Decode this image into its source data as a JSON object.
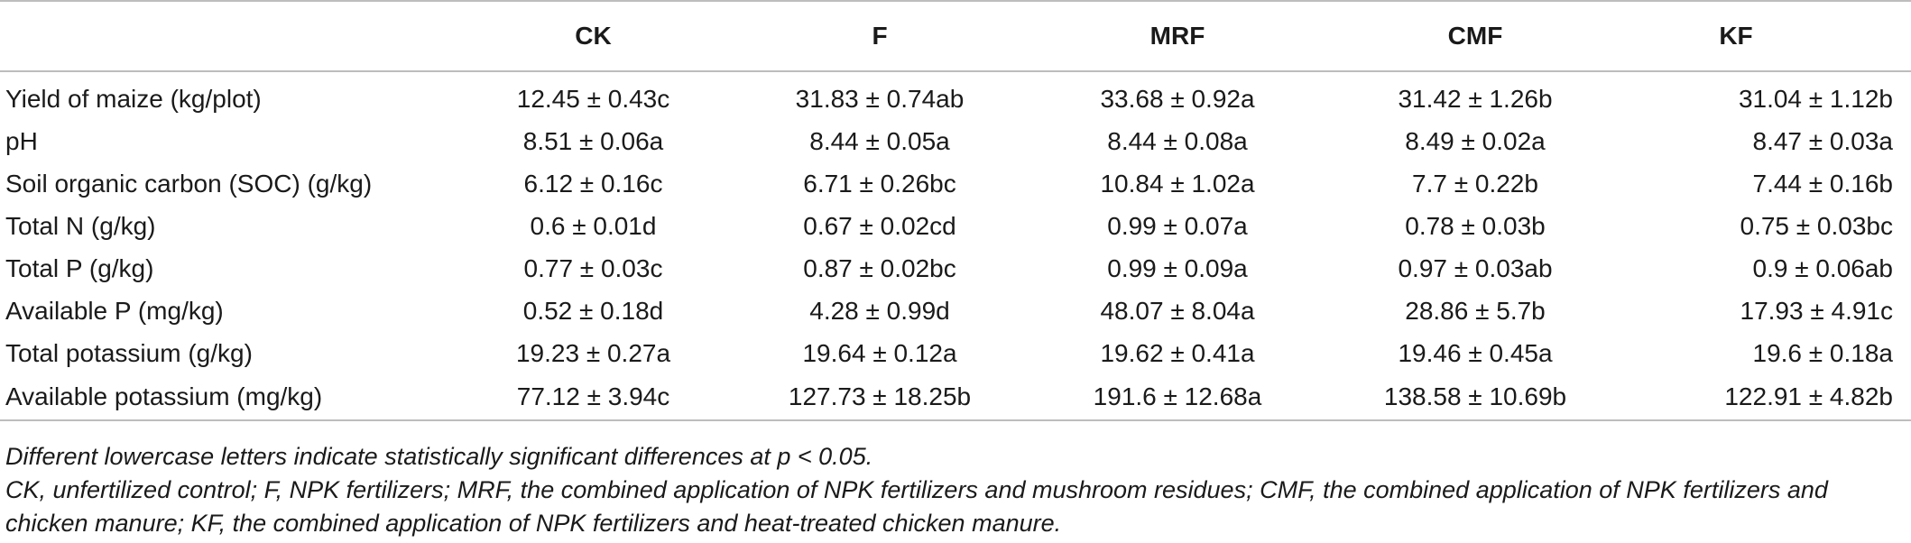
{
  "table": {
    "headers": [
      "",
      "CK",
      "F",
      "MRF",
      "CMF",
      "KF"
    ],
    "rows": [
      {
        "label": "Yield of maize (kg/plot)",
        "values": [
          "12.45 ± 0.43c",
          "31.83 ± 0.74ab",
          "33.68 ± 0.92a",
          "31.42 ± 1.26b",
          "31.04 ± 1.12b"
        ]
      },
      {
        "label": "pH",
        "values": [
          "8.51 ± 0.06a",
          "8.44 ± 0.05a",
          "8.44 ± 0.08a",
          "8.49 ± 0.02a",
          "8.47 ± 0.03a"
        ]
      },
      {
        "label": "Soil organic carbon (SOC) (g/kg)",
        "values": [
          "6.12 ± 0.16c",
          "6.71 ± 0.26bc",
          "10.84 ± 1.02a",
          "7.7 ± 0.22b",
          "7.44 ± 0.16b"
        ]
      },
      {
        "label": "Total N (g/kg)",
        "values": [
          "0.6 ± 0.01d",
          "0.67 ± 0.02cd",
          "0.99 ± 0.07a",
          "0.78 ± 0.03b",
          "0.75 ± 0.03bc"
        ]
      },
      {
        "label": "Total P (g/kg)",
        "values": [
          "0.77 ± 0.03c",
          "0.87 ± 0.02bc",
          "0.99 ± 0.09a",
          "0.97 ± 0.03ab",
          "0.9 ± 0.06ab"
        ]
      },
      {
        "label": "Available P (mg/kg)",
        "values": [
          "0.52 ± 0.18d",
          "4.28 ± 0.99d",
          "48.07 ± 8.04a",
          "28.86 ± 5.7b",
          "17.93 ± 4.91c"
        ]
      },
      {
        "label": "Total potassium (g/kg)",
        "values": [
          "19.23 ± 0.27a",
          "19.64 ± 0.12a",
          "19.62 ± 0.41a",
          "19.46 ± 0.45a",
          "19.6 ± 0.18a"
        ]
      },
      {
        "label": "Available potassium (mg/kg)",
        "values": [
          "77.12 ± 3.94c",
          "127.73 ± 18.25b",
          "191.6 ± 12.68a",
          "138.58 ± 10.69b",
          "122.91 ± 4.82b"
        ]
      }
    ]
  },
  "notes": {
    "significance": "Different lowercase letters indicate statistically significant differences at p < 0.05.",
    "abbreviations": "CK, unfertilized control; F, NPK fertilizers; MRF, the combined application of NPK fertilizers and mushroom residues; CMF, the combined application of NPK fertilizers and chicken manure; KF, the combined application of NPK fertilizers and heat-treated chicken manure."
  }
}
